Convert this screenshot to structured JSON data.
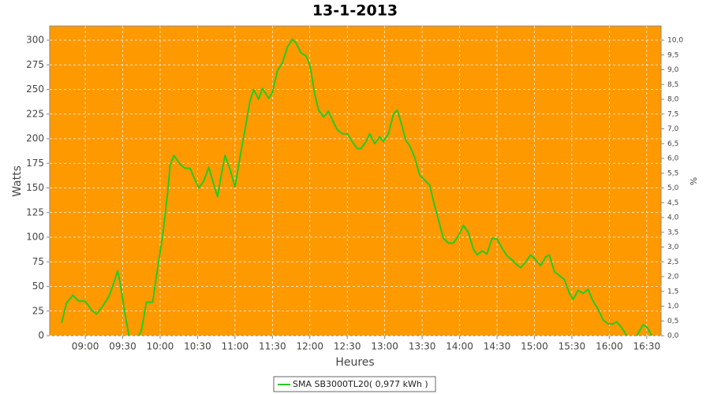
{
  "chart_data": {
    "type": "line",
    "title": "13-1-2013",
    "xlabel": "Heures",
    "ylabel": "Watts",
    "y2label": "%",
    "background": "#ff9900",
    "grid": true,
    "xlim": [
      511.5,
      1001.5
    ],
    "xticks": [
      {
        "value": 540,
        "label": "09:00"
      },
      {
        "value": 570,
        "label": "09:30"
      },
      {
        "value": 600,
        "label": "10:00"
      },
      {
        "value": 630,
        "label": "10:30"
      },
      {
        "value": 660,
        "label": "11:00"
      },
      {
        "value": 690,
        "label": "11:30"
      },
      {
        "value": 720,
        "label": "12:00"
      },
      {
        "value": 750,
        "label": "12:30"
      },
      {
        "value": 780,
        "label": "13:00"
      },
      {
        "value": 810,
        "label": "13:30"
      },
      {
        "value": 840,
        "label": "14:00"
      },
      {
        "value": 870,
        "label": "14:30"
      },
      {
        "value": 900,
        "label": "15:00"
      },
      {
        "value": 930,
        "label": "15:30"
      },
      {
        "value": 960,
        "label": "16:00"
      },
      {
        "value": 990,
        "label": "16:30"
      }
    ],
    "ylim": [
      0,
      314.4
    ],
    "yticks": [
      0,
      25,
      50,
      75,
      100,
      125,
      150,
      175,
      200,
      225,
      250,
      275,
      300
    ],
    "y2lim": [
      0,
      10.48
    ],
    "y2ticks": [
      {
        "value": 0,
        "label": "0,0"
      },
      {
        "value": 0.5,
        "label": "0,5"
      },
      {
        "value": 1,
        "label": "1,0"
      },
      {
        "value": 1.5,
        "label": "1,5"
      },
      {
        "value": 2,
        "label": "2,0"
      },
      {
        "value": 2.5,
        "label": "2,5"
      },
      {
        "value": 3,
        "label": "3,0"
      },
      {
        "value": 3.5,
        "label": "3,5"
      },
      {
        "value": 4,
        "label": "4,0"
      },
      {
        "value": 4.5,
        "label": "4,5"
      },
      {
        "value": 5,
        "label": "5,0"
      },
      {
        "value": 5.5,
        "label": "5,5"
      },
      {
        "value": 6,
        "label": "6,0"
      },
      {
        "value": 6.5,
        "label": "6,5"
      },
      {
        "value": 7,
        "label": "7,0"
      },
      {
        "value": 7.5,
        "label": "7,5"
      },
      {
        "value": 8,
        "label": "8,0"
      },
      {
        "value": 8.5,
        "label": "8,5"
      },
      {
        "value": 9,
        "label": "9,0"
      },
      {
        "value": 9.5,
        "label": "9,5"
      },
      {
        "value": 10,
        "label": "10,0"
      }
    ],
    "x": [
      521,
      525,
      530,
      535,
      540,
      545,
      549,
      554,
      559,
      563,
      566,
      568,
      572,
      575,
      580,
      585,
      589,
      594,
      599,
      602,
      606,
      608,
      611,
      616,
      620,
      624,
      627,
      631,
      635,
      639,
      642,
      646,
      649,
      652,
      656,
      660,
      664,
      668,
      672,
      675,
      679,
      682,
      687,
      690,
      694,
      698,
      702,
      706,
      709,
      713,
      717,
      720,
      724,
      727,
      731,
      735,
      738,
      742,
      746,
      750,
      754,
      758,
      761,
      765,
      768,
      772,
      776,
      779,
      783,
      787,
      790,
      793,
      797,
      800,
      804,
      808,
      812,
      816,
      819,
      823,
      827,
      831,
      835,
      839,
      843,
      847,
      851,
      854,
      858,
      862,
      866,
      870,
      874,
      878,
      882,
      886,
      889,
      893,
      897,
      901,
      905,
      909,
      912,
      916,
      920,
      924,
      928,
      931,
      935,
      939,
      943,
      947,
      951,
      955,
      959,
      963,
      966,
      970,
      974,
      978,
      982,
      987,
      990,
      994
    ],
    "series": [
      {
        "name": "SMA SB3000TL20( 0,977 kWh )",
        "color": "#22cc22",
        "values": [
          13,
          33,
          41,
          35,
          35,
          26,
          22,
          30,
          40,
          54,
          66,
          53,
          21,
          0,
          -7,
          5,
          34,
          34,
          77,
          101,
          145,
          173,
          183,
          174,
          170,
          170,
          161,
          150,
          157,
          171,
          158,
          141,
          163,
          183,
          169,
          151,
          181,
          209,
          238,
          250,
          240,
          251,
          241,
          247,
          269,
          277,
          293,
          301,
          297,
          287,
          284,
          275,
          245,
          229,
          222,
          228,
          219,
          209,
          205,
          205,
          197,
          190,
          190,
          197,
          205,
          195,
          202,
          197,
          205,
          225,
          229,
          217,
          198,
          193,
          181,
          163,
          158,
          153,
          137,
          118,
          99,
          94,
          94,
          101,
          112,
          105,
          88,
          82,
          86,
          83,
          99,
          98,
          89,
          81,
          77,
          72,
          69,
          75,
          82,
          77,
          71,
          80,
          82,
          65,
          61,
          57,
          43,
          37,
          46,
          43,
          47,
          35,
          27,
          16,
          12,
          12,
          14,
          8,
          0,
          -6,
          0,
          11,
          9,
          0
        ]
      }
    ]
  }
}
